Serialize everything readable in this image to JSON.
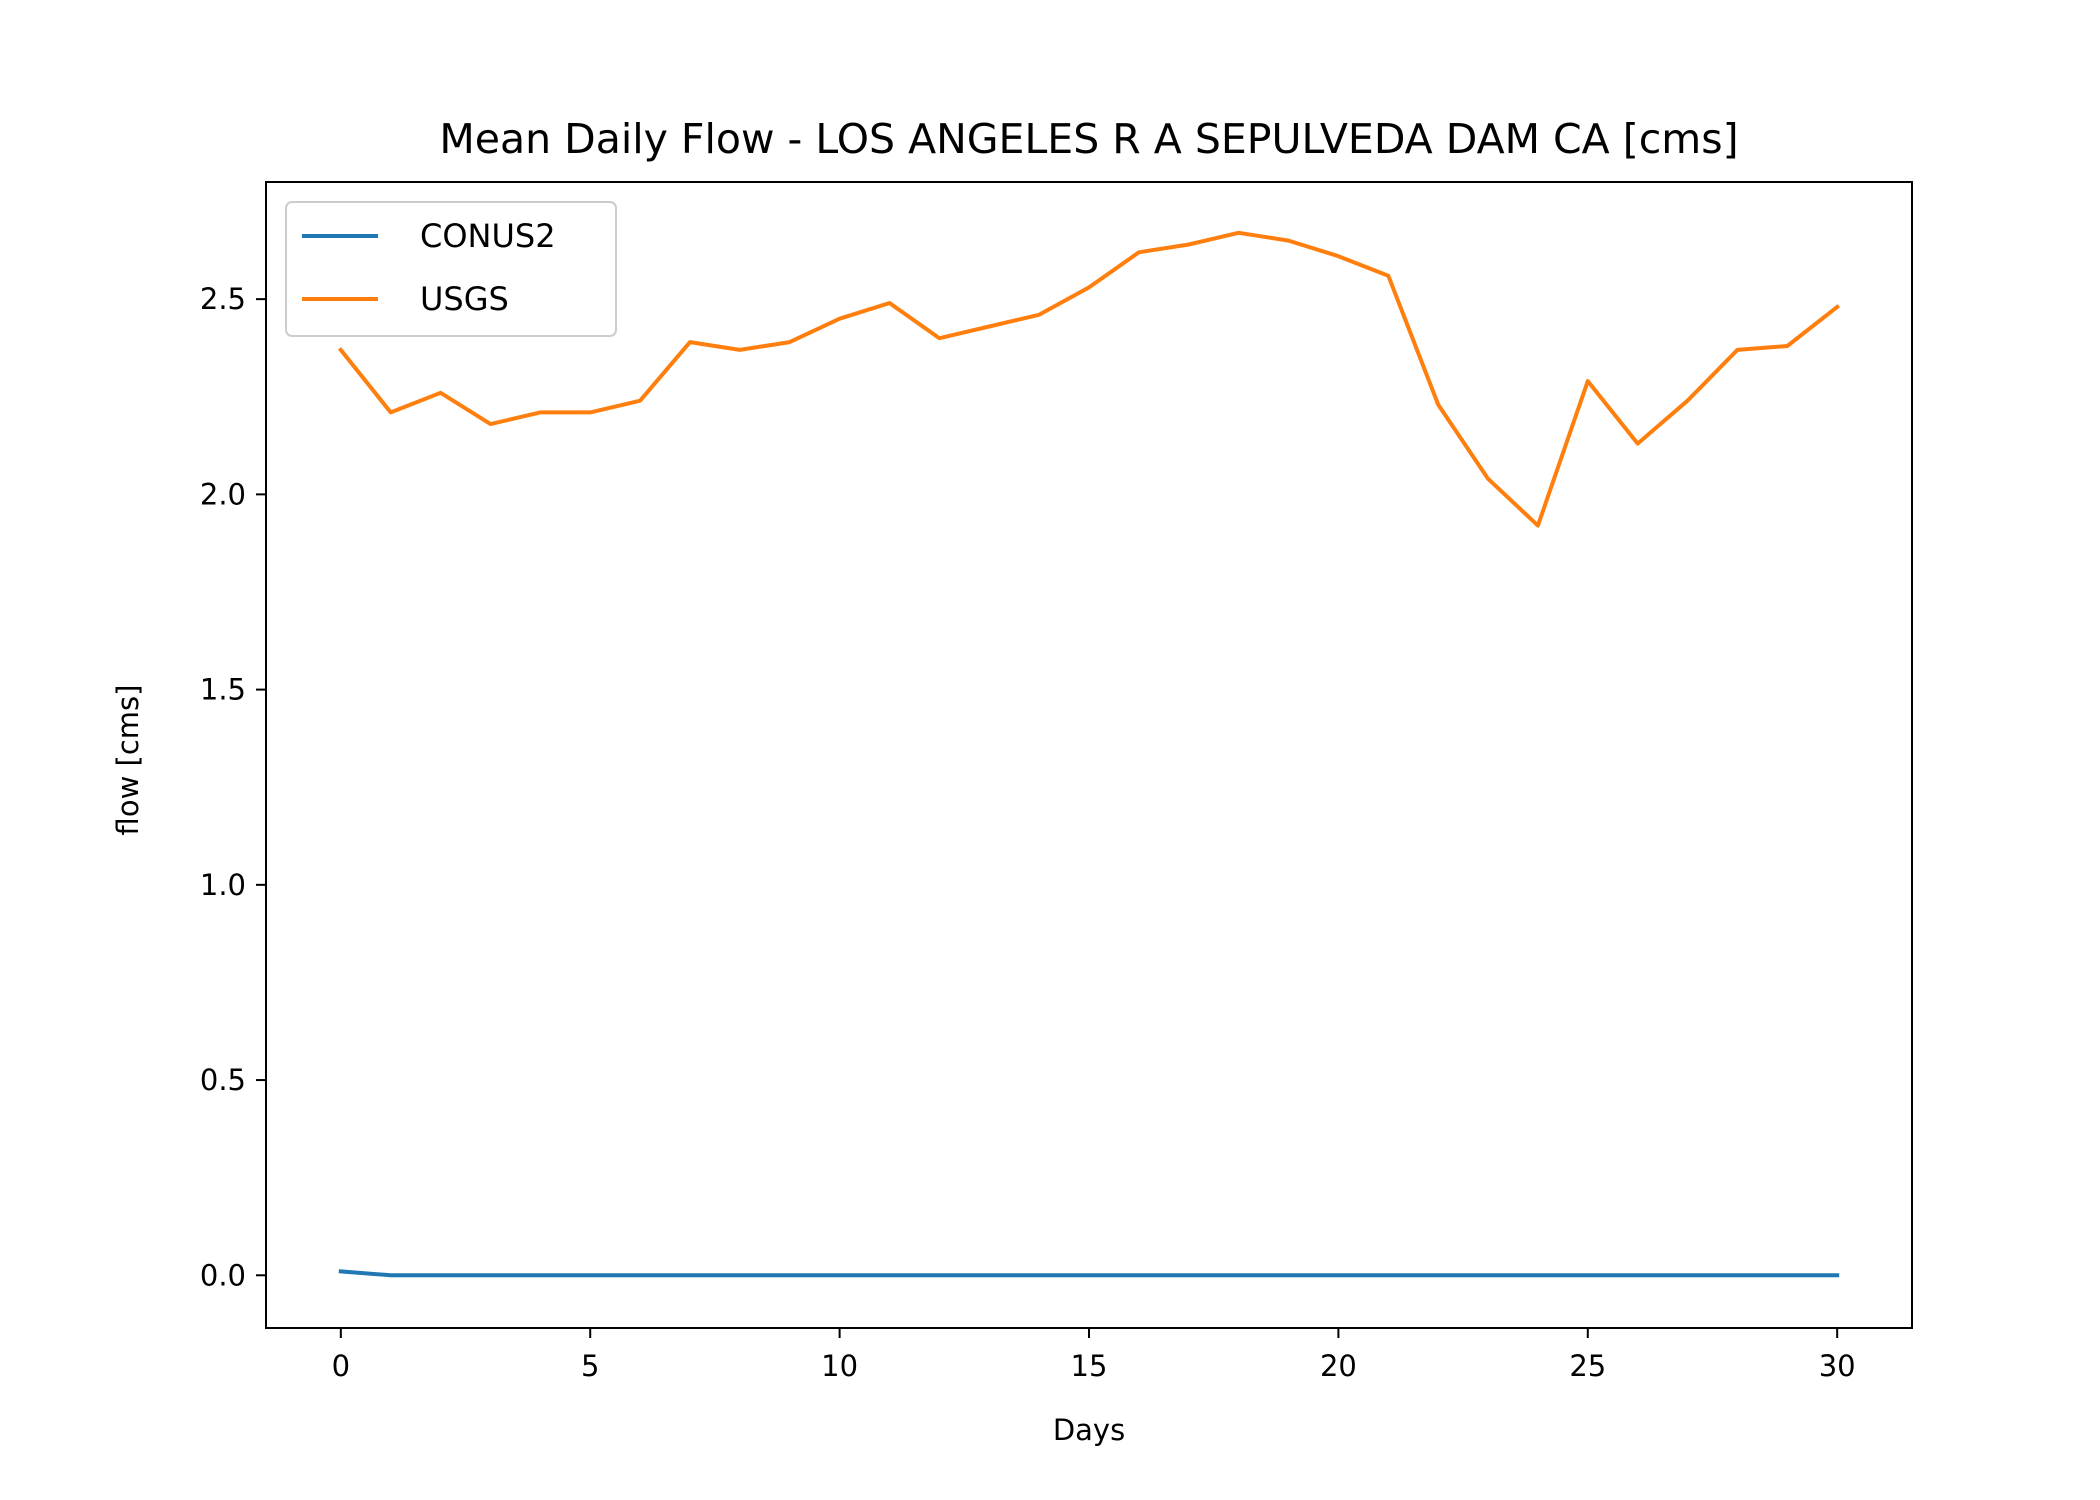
{
  "chart_data": {
    "type": "line",
    "title": "Mean Daily Flow - LOS ANGELES R A SEPULVEDA DAM CA [cms]",
    "xlabel": "Days",
    "ylabel": "flow [cms]",
    "xlim": [
      -1.5,
      31.5
    ],
    "ylim": [
      -0.135,
      2.8
    ],
    "xticks": [
      0,
      5,
      10,
      15,
      20,
      25,
      30
    ],
    "xtick_labels": [
      "0",
      "5",
      "10",
      "15",
      "20",
      "25",
      "30"
    ],
    "yticks": [
      0.0,
      0.5,
      1.0,
      1.5,
      2.0,
      2.5
    ],
    "ytick_labels": [
      "0.0",
      "0.5",
      "1.0",
      "1.5",
      "2.0",
      "2.5"
    ],
    "grid": false,
    "legend_position": "top-left",
    "x": [
      0,
      1,
      2,
      3,
      4,
      5,
      6,
      7,
      8,
      9,
      10,
      11,
      12,
      13,
      14,
      15,
      16,
      17,
      18,
      19,
      20,
      21,
      22,
      23,
      24,
      25,
      26,
      27,
      28,
      29,
      30
    ],
    "series": [
      {
        "name": "CONUS2",
        "color": "#1f77b4",
        "values": [
          0.01,
          0,
          0,
          0,
          0,
          0,
          0,
          0,
          0,
          0,
          0,
          0,
          0,
          0,
          0,
          0,
          0,
          0,
          0,
          0,
          0,
          0,
          0,
          0,
          0,
          0,
          0,
          0,
          0,
          0,
          0
        ]
      },
      {
        "name": "USGS",
        "color": "#ff7f0e",
        "values": [
          2.37,
          2.21,
          2.26,
          2.18,
          2.21,
          2.21,
          2.24,
          2.39,
          2.37,
          2.39,
          2.45,
          2.49,
          2.4,
          2.43,
          2.46,
          2.53,
          2.62,
          2.64,
          2.67,
          2.65,
          2.61,
          2.56,
          2.23,
          2.04,
          1.92,
          2.29,
          2.13,
          2.24,
          2.37,
          2.38,
          2.48
        ]
      }
    ]
  }
}
